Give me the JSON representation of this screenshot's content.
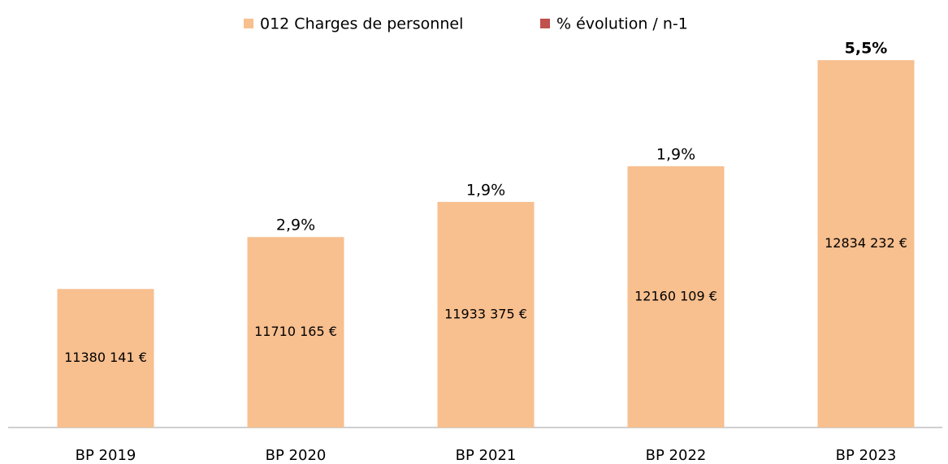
{
  "chart_data": {
    "type": "bar",
    "categories": [
      "BP 2019",
      "BP 2020",
      "BP 2021",
      "BP 2022",
      "BP 2023"
    ],
    "series": [
      {
        "name": "012 Charges de personnel",
        "color": "#f8bf8f",
        "values": [
          11380141,
          11710165,
          11933375,
          12160109,
          12834232
        ],
        "value_labels": [
          "11380 141 €",
          "11710 165 €",
          "11933 375 €",
          "12160 109 €",
          "12834 232 €"
        ]
      },
      {
        "name": "% évolution / n-1",
        "color": "#c0504d",
        "values": [
          null,
          2.9,
          1.9,
          1.9,
          5.5
        ],
        "value_labels": [
          null,
          "2,9%",
          "1,9%",
          "1,9%",
          "5,5%"
        ]
      }
    ],
    "ylim": [
      10500000,
      13000000
    ],
    "legend": "top"
  }
}
